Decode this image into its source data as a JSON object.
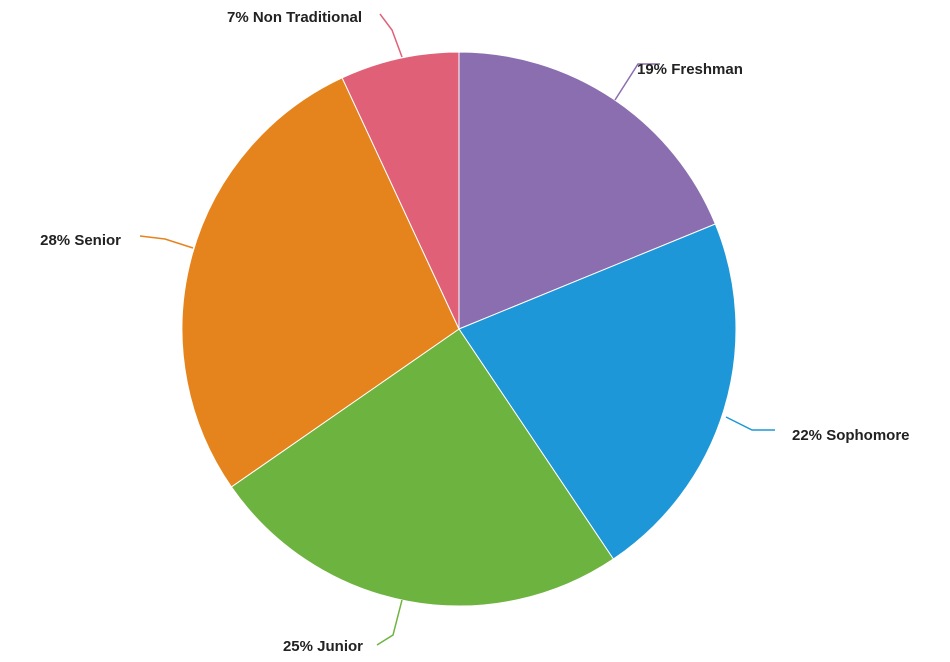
{
  "chart_data": {
    "type": "pie",
    "title": "",
    "slices": [
      {
        "label": "19% Freshman",
        "category": "Freshman",
        "value": 19,
        "color": "#8a6eb0"
      },
      {
        "label": "22% Sophomore",
        "category": "Sophomore",
        "value": 22,
        "color": "#1e97d8"
      },
      {
        "label": "25% Junior",
        "category": "Junior",
        "value": 25,
        "color": "#6db33f"
      },
      {
        "label": "28% Senior",
        "category": "Senior",
        "value": 28,
        "color": "#e5841d"
      },
      {
        "label": "7% Non Traditional",
        "category": "Non Traditional",
        "value": 7,
        "color": "#e06078"
      }
    ],
    "start": "top",
    "direction": "clockwise",
    "legend": "none"
  }
}
